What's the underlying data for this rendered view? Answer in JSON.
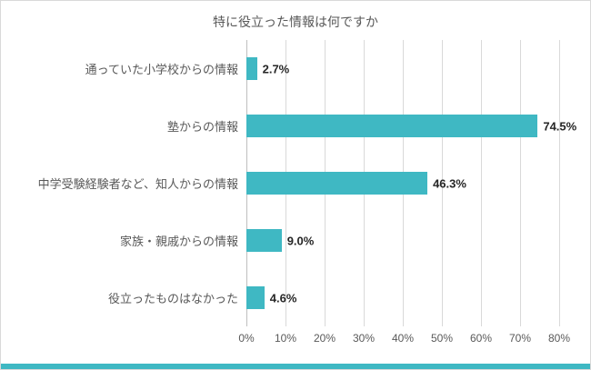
{
  "chart_data": {
    "type": "bar",
    "orientation": "horizontal",
    "title": "特に役立った情報は何ですか",
    "categories": [
      "通っていた小学校からの情報",
      "塾からの情報",
      "中学受験経験者など、知人からの情報",
      "家族・親戚からの情報",
      "役立ったものはなかった"
    ],
    "values": [
      2.7,
      74.5,
      46.3,
      9.0,
      4.6
    ],
    "value_labels": [
      "2.7%",
      "74.5%",
      "46.3%",
      "9.0%",
      "4.6%"
    ],
    "xlim": [
      0,
      80
    ],
    "x_ticks": [
      "0%",
      "10%",
      "20%",
      "30%",
      "40%",
      "50%",
      "60%",
      "70%",
      "80%"
    ],
    "grid": true,
    "legend": "none",
    "colors": {
      "bar": "#3fb8c3",
      "accent_strip": "#3fb8c3",
      "gridline": "#d9d9d9",
      "axis_line": "#bfbfbf",
      "title_text": "#595959",
      "label_text": "#595959",
      "value_text": "#262626"
    }
  }
}
